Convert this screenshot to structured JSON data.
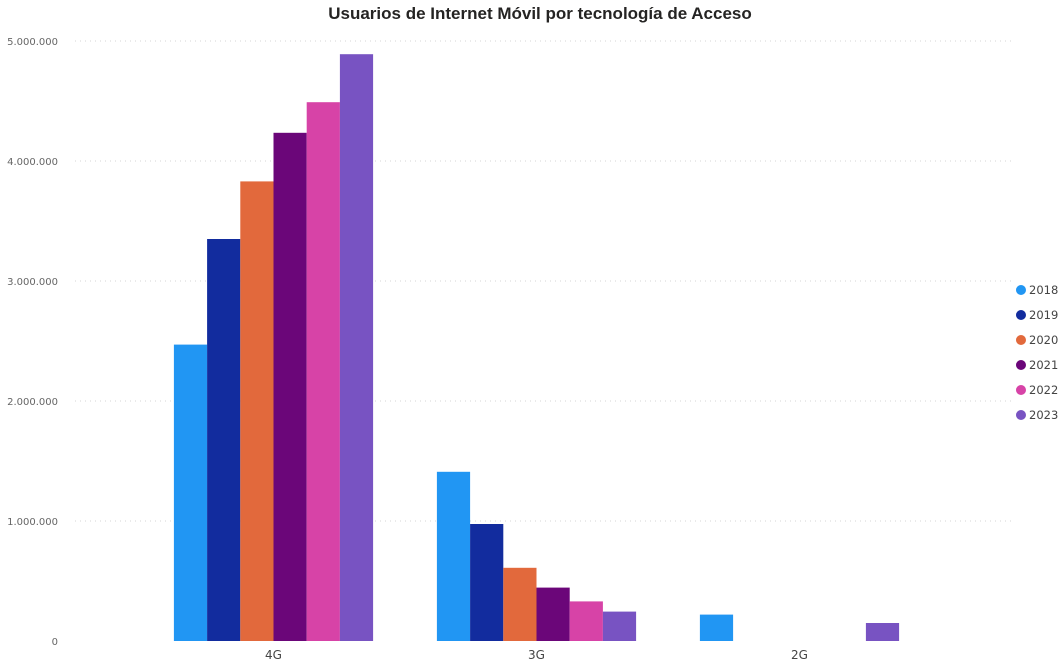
{
  "chart_data": {
    "type": "bar",
    "title": "Usuarios de Internet Móvil por tecnología de Acceso",
    "xlabel": "",
    "ylabel": "",
    "categories": [
      "4G",
      "3G",
      "2G"
    ],
    "series": [
      {
        "name": "2018",
        "color": "#2196F3",
        "values": [
          2470000,
          1410000,
          220000
        ]
      },
      {
        "name": "2019",
        "color": "#122C9E",
        "values": [
          3350000,
          975000,
          0
        ]
      },
      {
        "name": "2020",
        "color": "#E2693C",
        "values": [
          3830000,
          610000,
          0
        ]
      },
      {
        "name": "2021",
        "color": "#6B0679",
        "values": [
          4235000,
          445000,
          0
        ]
      },
      {
        "name": "2022",
        "color": "#D743A7",
        "values": [
          4490000,
          330000,
          0
        ]
      },
      {
        "name": "2023",
        "color": "#7853C2",
        "values": [
          4890000,
          245000,
          150000
        ]
      }
    ],
    "ylim": [
      0,
      5000000
    ],
    "yticks": [
      0,
      1000000,
      2000000,
      3000000,
      4000000,
      5000000
    ],
    "ytick_labels": [
      "0",
      "1.000.000",
      "2.000.000",
      "3.000.000",
      "4.000.000",
      "5.000.000"
    ],
    "grid": true,
    "legend_position": "right"
  }
}
